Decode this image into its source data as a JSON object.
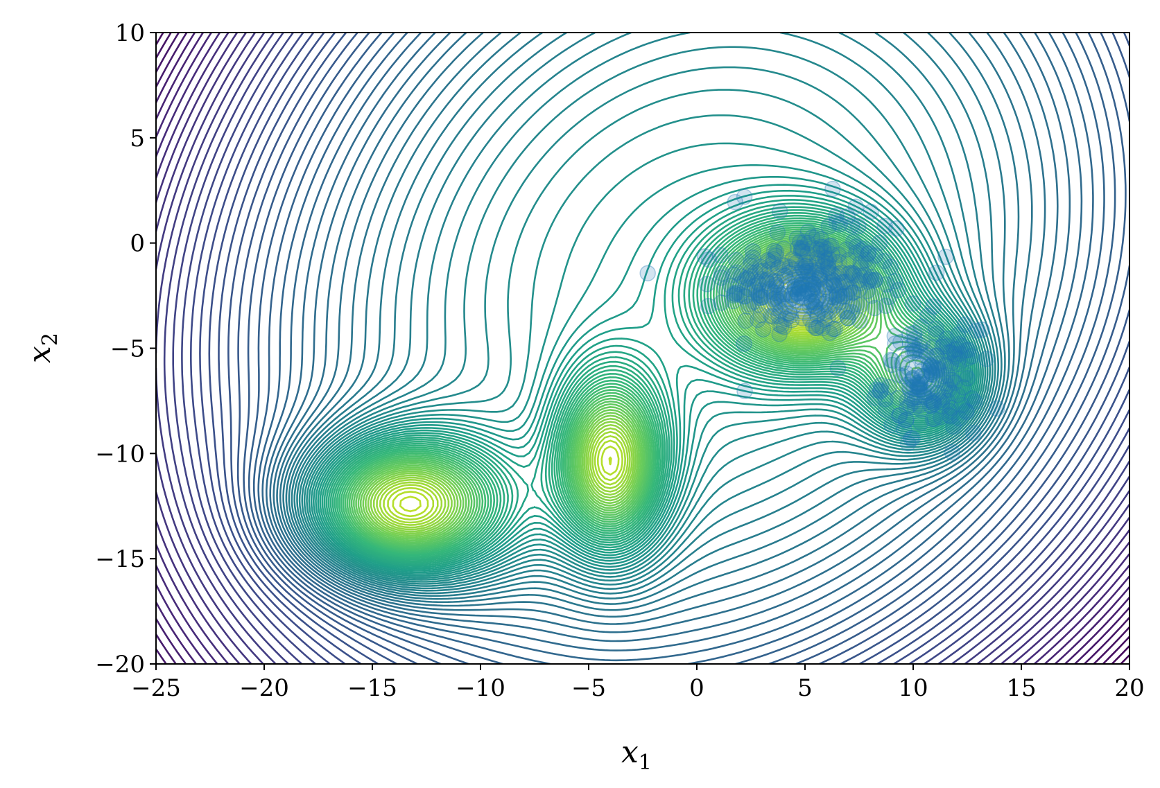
{
  "chart_data": {
    "type": "contour",
    "title": "",
    "xlabel": "x",
    "xlabel_sub": "1",
    "ylabel": "x",
    "ylabel_sub": "2",
    "xlim": [
      -25,
      20
    ],
    "ylim": [
      -20,
      10
    ],
    "x_ticks": [
      -25,
      -20,
      -15,
      -10,
      -5,
      0,
      5,
      10,
      15,
      20
    ],
    "y_ticks": [
      -20,
      -15,
      -10,
      -5,
      0,
      5,
      10
    ],
    "x_tick_labels": [
      "−25",
      "−20",
      "−15",
      "−10",
      "−5",
      "0",
      "5",
      "10",
      "15",
      "20"
    ],
    "y_tick_labels": [
      "−20",
      "−15",
      "−10",
      "−5",
      "0",
      "5",
      "10"
    ],
    "grid": false,
    "colormap": "viridis",
    "scatter_color": "#1f77b4",
    "scatter_alpha": 0.2,
    "scatter_clusters": [
      {
        "center": [
          5.0,
          -2.0
        ],
        "spread": [
          1.8,
          1.2
        ],
        "count": 300
      },
      {
        "center": [
          10.8,
          -6.5
        ],
        "spread": [
          1.1,
          1.2
        ],
        "count": 180
      },
      {
        "center": [
          6.5,
          -1.0
        ],
        "spread": [
          2.6,
          1.8
        ],
        "count": 60
      }
    ]
  }
}
